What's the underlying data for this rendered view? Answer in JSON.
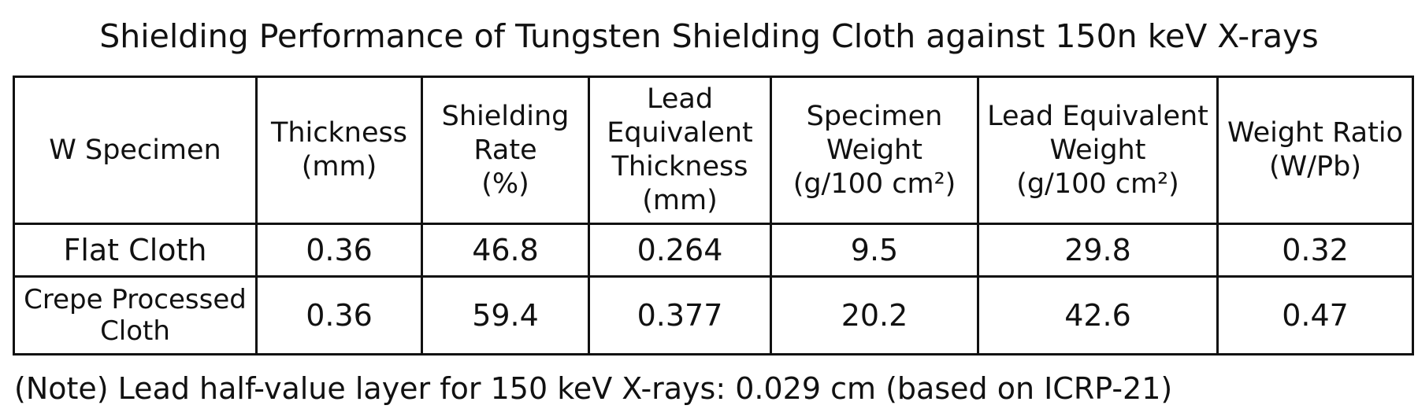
{
  "title": "Shielding Performance of Tungsten Shielding Cloth against 150n keV X-rays",
  "table": {
    "header": [
      [
        "W Specimen"
      ],
      [
        "Thickness",
        "(mm)"
      ],
      [
        "Shielding",
        "Rate",
        "(%)"
      ],
      [
        "Lead",
        "Equivalent",
        "Thickness",
        "(mm)"
      ],
      [
        "Specimen",
        "Weight",
        "(g/100 cm²)"
      ],
      [
        "Lead Equivalent",
        "Weight",
        "(g/100 cm²)"
      ],
      [
        "Weight Ratio",
        "(W/Pb)"
      ]
    ],
    "rows": [
      [
        "Flat Cloth",
        0.36,
        46.8,
        0.264,
        9.5,
        29.8,
        0.32
      ],
      [
        "Crepe Processed Cloth",
        0.36,
        59.4,
        0.377,
        20.2,
        42.6,
        0.47
      ]
    ]
  },
  "note": "(Note) Lead half-value layer for 150 keV X-rays: 0.029 cm (based on ICRP-21)"
}
